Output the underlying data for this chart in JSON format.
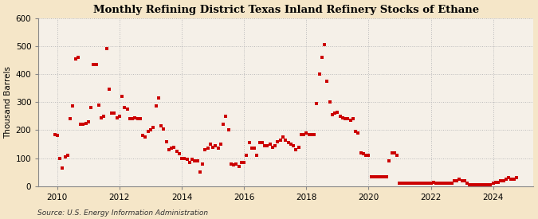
{
  "title": "Monthly Refining District Texas Inland Refinery Stocks of Ethane",
  "ylabel": "Thousand Barrels",
  "source": "Source: U.S. Energy Information Administration",
  "background_color": "#f5e6c8",
  "plot_bg_color": "#f5f0e8",
  "dot_color": "#cc0000",
  "ylim": [
    0,
    600
  ],
  "yticks": [
    0,
    100,
    200,
    300,
    400,
    500,
    600
  ],
  "xlim_start": 2009.4,
  "xlim_end": 2025.3,
  "xticks": [
    2010,
    2012,
    2014,
    2016,
    2018,
    2020,
    2022,
    2024
  ],
  "data": [
    [
      2009.917,
      185
    ],
    [
      2010.0,
      180
    ],
    [
      2010.083,
      100
    ],
    [
      2010.167,
      65
    ],
    [
      2010.25,
      105
    ],
    [
      2010.333,
      110
    ],
    [
      2010.417,
      240
    ],
    [
      2010.5,
      285
    ],
    [
      2010.583,
      455
    ],
    [
      2010.667,
      460
    ],
    [
      2010.75,
      220
    ],
    [
      2010.833,
      220
    ],
    [
      2010.917,
      225
    ],
    [
      2011.0,
      230
    ],
    [
      2011.083,
      280
    ],
    [
      2011.167,
      435
    ],
    [
      2011.25,
      435
    ],
    [
      2011.333,
      290
    ],
    [
      2011.417,
      245
    ],
    [
      2011.5,
      250
    ],
    [
      2011.583,
      490
    ],
    [
      2011.667,
      345
    ],
    [
      2011.75,
      260
    ],
    [
      2011.833,
      260
    ],
    [
      2011.917,
      245
    ],
    [
      2012.0,
      250
    ],
    [
      2012.083,
      320
    ],
    [
      2012.167,
      280
    ],
    [
      2012.25,
      275
    ],
    [
      2012.333,
      240
    ],
    [
      2012.417,
      240
    ],
    [
      2012.5,
      245
    ],
    [
      2012.583,
      240
    ],
    [
      2012.667,
      240
    ],
    [
      2012.75,
      180
    ],
    [
      2012.833,
      175
    ],
    [
      2012.917,
      195
    ],
    [
      2013.0,
      200
    ],
    [
      2013.083,
      210
    ],
    [
      2013.167,
      285
    ],
    [
      2013.25,
      315
    ],
    [
      2013.333,
      215
    ],
    [
      2013.417,
      205
    ],
    [
      2013.5,
      160
    ],
    [
      2013.583,
      130
    ],
    [
      2013.667,
      135
    ],
    [
      2013.75,
      140
    ],
    [
      2013.833,
      125
    ],
    [
      2013.917,
      115
    ],
    [
      2014.0,
      100
    ],
    [
      2014.083,
      100
    ],
    [
      2014.167,
      95
    ],
    [
      2014.25,
      85
    ],
    [
      2014.333,
      95
    ],
    [
      2014.417,
      90
    ],
    [
      2014.5,
      90
    ],
    [
      2014.583,
      50
    ],
    [
      2014.667,
      80
    ],
    [
      2014.75,
      130
    ],
    [
      2014.833,
      135
    ],
    [
      2014.917,
      150
    ],
    [
      2015.0,
      140
    ],
    [
      2015.083,
      145
    ],
    [
      2015.167,
      135
    ],
    [
      2015.25,
      150
    ],
    [
      2015.333,
      220
    ],
    [
      2015.417,
      250
    ],
    [
      2015.5,
      200
    ],
    [
      2015.583,
      80
    ],
    [
      2015.667,
      75
    ],
    [
      2015.75,
      80
    ],
    [
      2015.833,
      70
    ],
    [
      2015.917,
      85
    ],
    [
      2016.0,
      85
    ],
    [
      2016.083,
      110
    ],
    [
      2016.167,
      155
    ],
    [
      2016.25,
      135
    ],
    [
      2016.333,
      135
    ],
    [
      2016.417,
      110
    ],
    [
      2016.5,
      155
    ],
    [
      2016.583,
      155
    ],
    [
      2016.667,
      145
    ],
    [
      2016.75,
      145
    ],
    [
      2016.833,
      150
    ],
    [
      2016.917,
      140
    ],
    [
      2017.0,
      145
    ],
    [
      2017.083,
      160
    ],
    [
      2017.167,
      165
    ],
    [
      2017.25,
      175
    ],
    [
      2017.333,
      165
    ],
    [
      2017.417,
      155
    ],
    [
      2017.5,
      150
    ],
    [
      2017.583,
      145
    ],
    [
      2017.667,
      130
    ],
    [
      2017.75,
      140
    ],
    [
      2017.833,
      185
    ],
    [
      2017.917,
      185
    ],
    [
      2018.0,
      190
    ],
    [
      2018.083,
      185
    ],
    [
      2018.167,
      185
    ],
    [
      2018.25,
      185
    ],
    [
      2018.333,
      295
    ],
    [
      2018.417,
      400
    ],
    [
      2018.5,
      460
    ],
    [
      2018.583,
      505
    ],
    [
      2018.667,
      375
    ],
    [
      2018.75,
      300
    ],
    [
      2018.833,
      255
    ],
    [
      2018.917,
      260
    ],
    [
      2019.0,
      265
    ],
    [
      2019.083,
      250
    ],
    [
      2019.167,
      245
    ],
    [
      2019.25,
      240
    ],
    [
      2019.333,
      240
    ],
    [
      2019.417,
      235
    ],
    [
      2019.5,
      240
    ],
    [
      2019.583,
      195
    ],
    [
      2019.667,
      190
    ],
    [
      2019.75,
      120
    ],
    [
      2019.833,
      115
    ],
    [
      2019.917,
      110
    ],
    [
      2020.0,
      110
    ],
    [
      2020.083,
      35
    ],
    [
      2020.167,
      35
    ],
    [
      2020.25,
      35
    ],
    [
      2020.333,
      35
    ],
    [
      2020.417,
      35
    ],
    [
      2020.5,
      35
    ],
    [
      2020.583,
      35
    ],
    [
      2020.667,
      90
    ],
    [
      2020.75,
      120
    ],
    [
      2020.833,
      120
    ],
    [
      2020.917,
      110
    ],
    [
      2021.0,
      10
    ],
    [
      2021.083,
      10
    ],
    [
      2021.167,
      10
    ],
    [
      2021.25,
      10
    ],
    [
      2021.333,
      10
    ],
    [
      2021.417,
      10
    ],
    [
      2021.5,
      10
    ],
    [
      2021.583,
      10
    ],
    [
      2021.667,
      10
    ],
    [
      2021.75,
      10
    ],
    [
      2021.833,
      10
    ],
    [
      2021.917,
      10
    ],
    [
      2022.0,
      10
    ],
    [
      2022.083,
      15
    ],
    [
      2022.167,
      10
    ],
    [
      2022.25,
      10
    ],
    [
      2022.333,
      10
    ],
    [
      2022.417,
      10
    ],
    [
      2022.5,
      10
    ],
    [
      2022.583,
      10
    ],
    [
      2022.667,
      10
    ],
    [
      2022.75,
      20
    ],
    [
      2022.833,
      20
    ],
    [
      2022.917,
      25
    ],
    [
      2023.0,
      20
    ],
    [
      2023.083,
      20
    ],
    [
      2023.167,
      10
    ],
    [
      2023.25,
      5
    ],
    [
      2023.333,
      5
    ],
    [
      2023.417,
      5
    ],
    [
      2023.5,
      5
    ],
    [
      2023.583,
      5
    ],
    [
      2023.667,
      5
    ],
    [
      2023.75,
      5
    ],
    [
      2023.833,
      5
    ],
    [
      2023.917,
      5
    ],
    [
      2024.0,
      10
    ],
    [
      2024.083,
      15
    ],
    [
      2024.167,
      15
    ],
    [
      2024.25,
      20
    ],
    [
      2024.333,
      20
    ],
    [
      2024.417,
      25
    ],
    [
      2024.5,
      30
    ],
    [
      2024.583,
      25
    ],
    [
      2024.667,
      25
    ],
    [
      2024.75,
      30
    ]
  ]
}
